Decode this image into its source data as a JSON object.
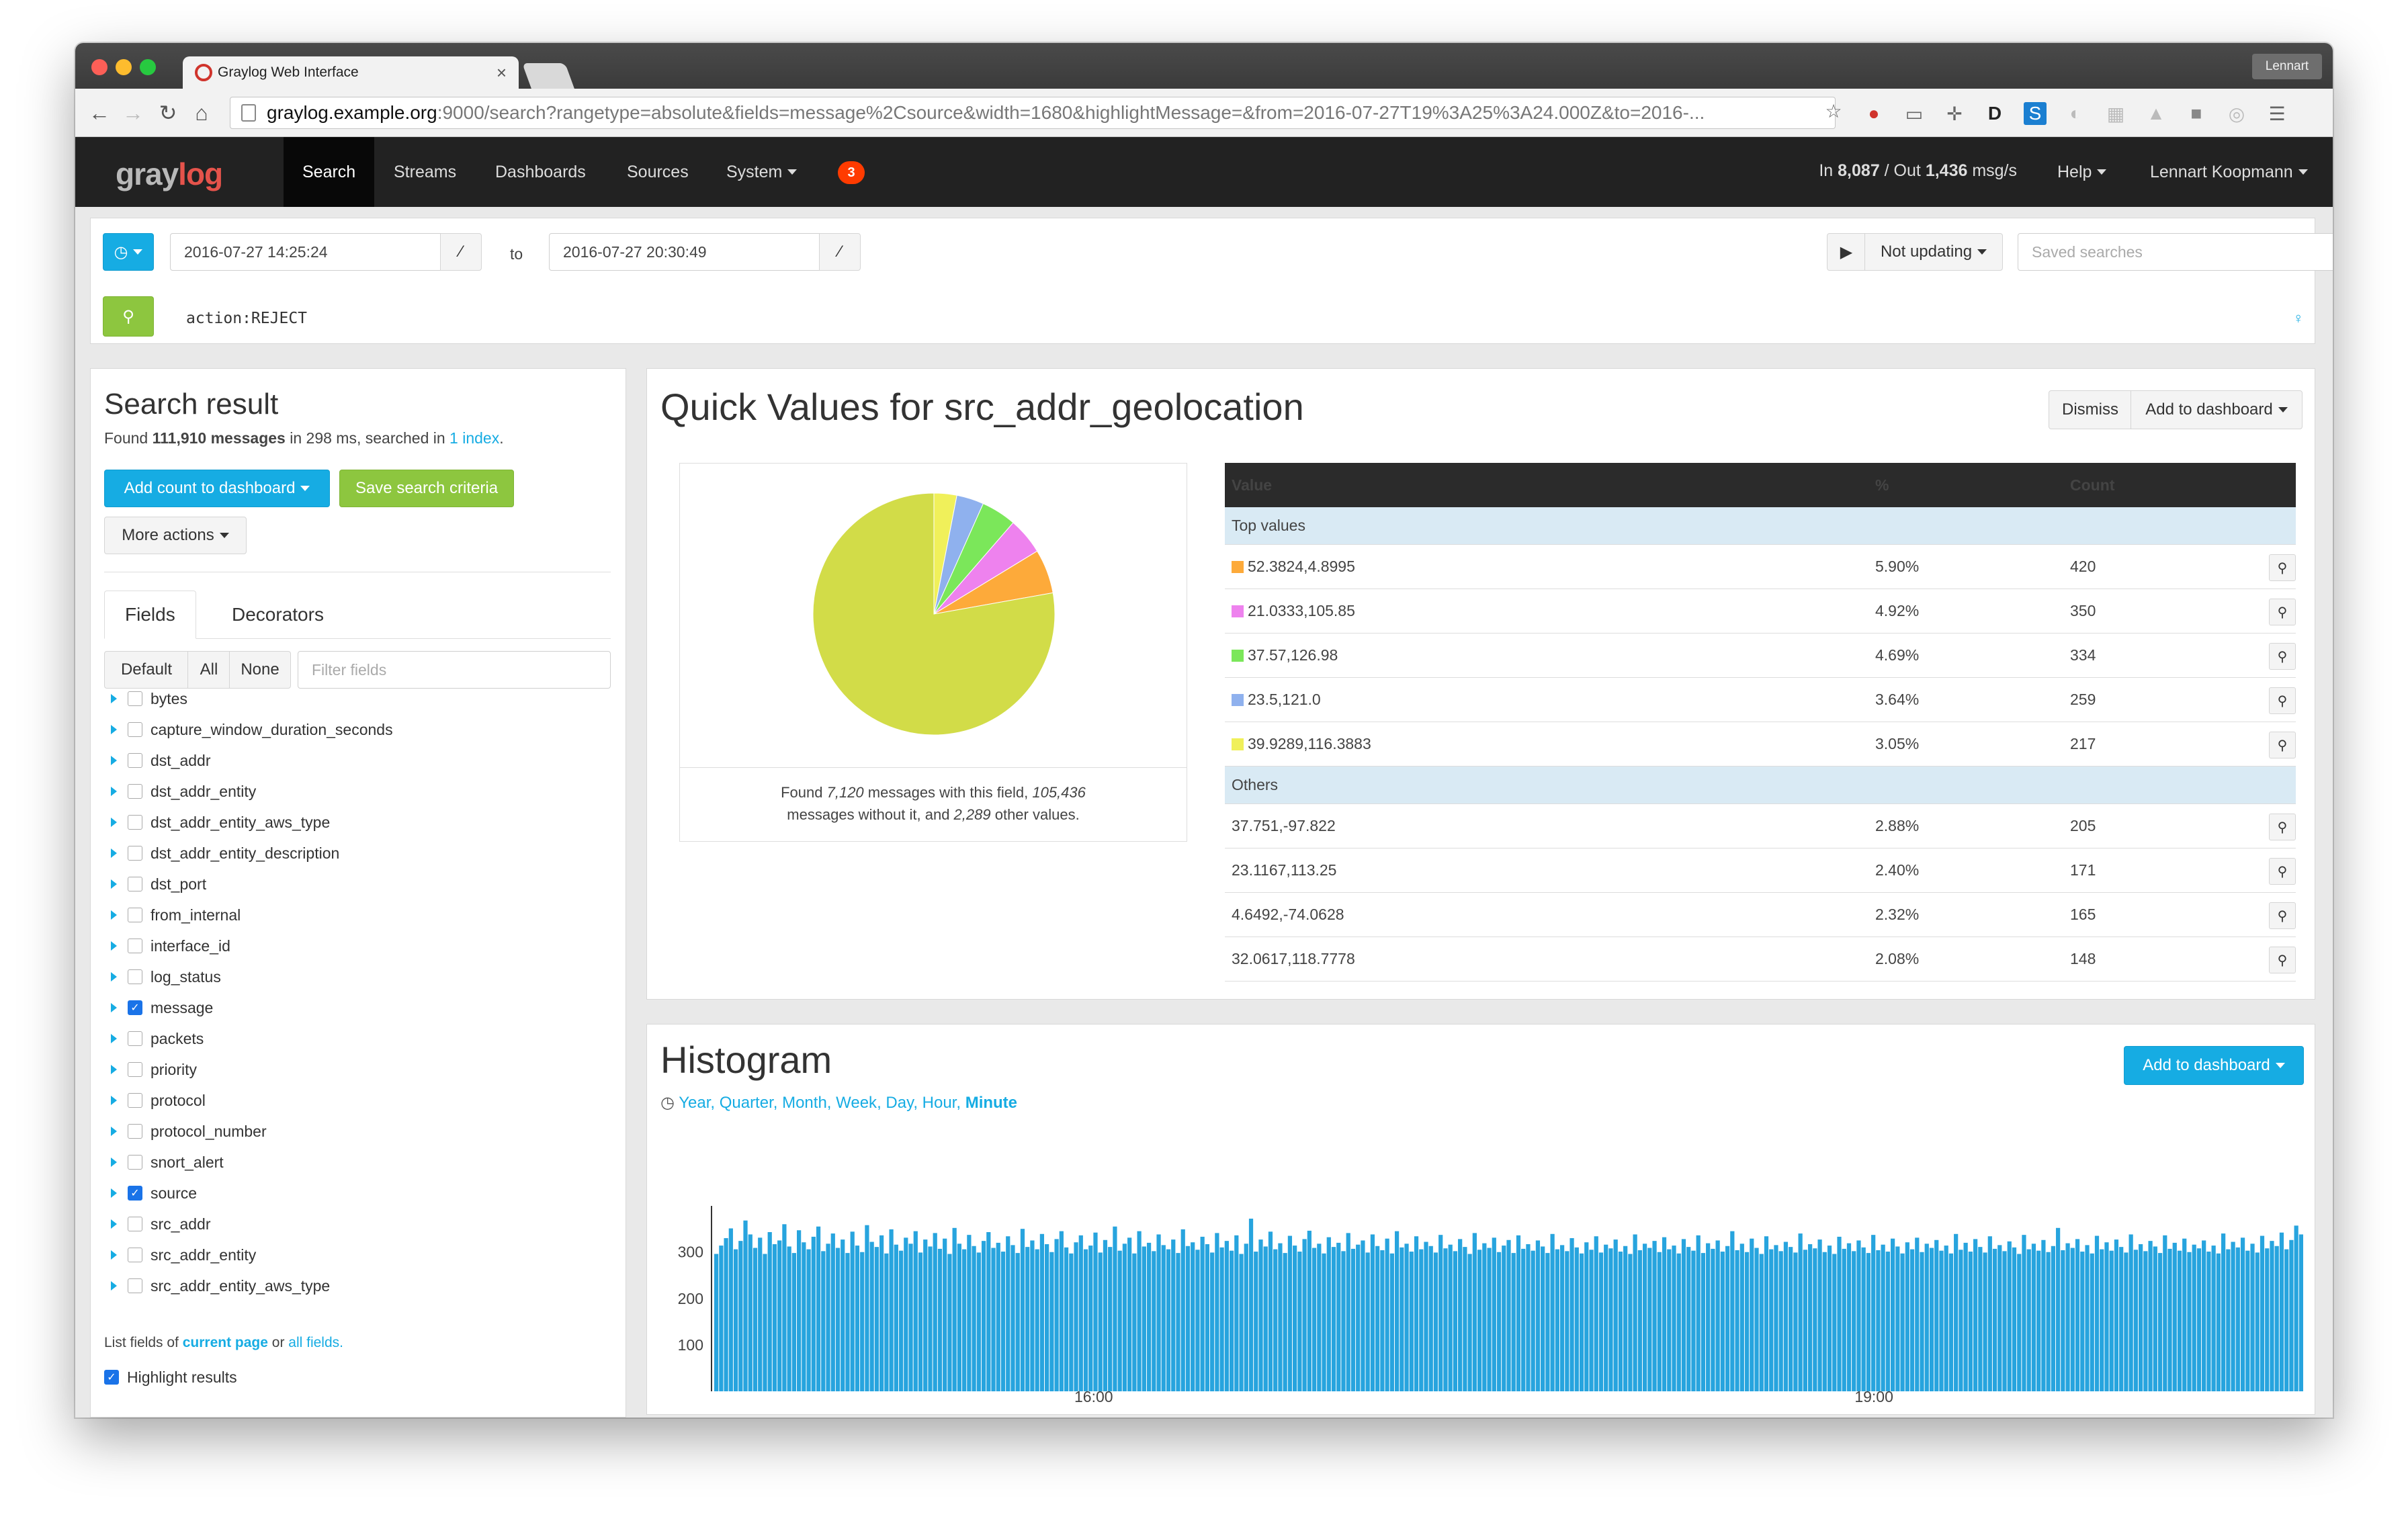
{
  "browser": {
    "tab_title": "Graylog Web Interface",
    "profile": "Lennart",
    "url_host": "graylog.example.org",
    "url_rest": ":9000/search?rangetype=absolute&fields=message%2Csource&width=1680&highlightMessage=&from=2016-07-27T19%3A25%3A24.000Z&to=2016-..."
  },
  "nav": {
    "logo_a": "gray",
    "logo_b": "log",
    "items": [
      "Search",
      "Streams",
      "Dashboards",
      "Sources",
      "System"
    ],
    "badge": "3",
    "throughput_in": "8,087",
    "throughput_out": "1,436",
    "throughput_prefix": "In ",
    "throughput_mid": " / Out ",
    "throughput_suffix": " msg/s",
    "help": "Help",
    "user": "Lennart Koopmann"
  },
  "search": {
    "from": "2016-07-27 14:25:24",
    "to_label": "to",
    "to": "2016-07-27 20:30:49",
    "not_updating": "Not updating",
    "saved_searches_placeholder": "Saved searches",
    "query": "action:REJECT"
  },
  "result": {
    "title": "Search result",
    "found_prefix": "Found ",
    "count": "111,910 messages",
    "found_mid": " in 298 ms, searched in ",
    "index_link": "1 index",
    "found_end": ".",
    "add_count": "Add count to dashboard",
    "save_criteria": "Save search criteria",
    "more_actions": "More actions",
    "tab_fields": "Fields",
    "tab_decorators": "Decorators",
    "filter_default": "Default",
    "filter_all": "All",
    "filter_none": "None",
    "filter_placeholder": "Filter fields",
    "fields": [
      {
        "name": "bytes",
        "checked": false
      },
      {
        "name": "capture_window_duration_seconds",
        "checked": false
      },
      {
        "name": "dst_addr",
        "checked": false
      },
      {
        "name": "dst_addr_entity",
        "checked": false
      },
      {
        "name": "dst_addr_entity_aws_type",
        "checked": false
      },
      {
        "name": "dst_addr_entity_description",
        "checked": false
      },
      {
        "name": "dst_port",
        "checked": false
      },
      {
        "name": "from_internal",
        "checked": false
      },
      {
        "name": "interface_id",
        "checked": false
      },
      {
        "name": "log_status",
        "checked": false
      },
      {
        "name": "message",
        "checked": true
      },
      {
        "name": "packets",
        "checked": false
      },
      {
        "name": "priority",
        "checked": false
      },
      {
        "name": "protocol",
        "checked": false
      },
      {
        "name": "protocol_number",
        "checked": false
      },
      {
        "name": "snort_alert",
        "checked": false
      },
      {
        "name": "source",
        "checked": true
      },
      {
        "name": "src_addr",
        "checked": false
      },
      {
        "name": "src_addr_entity",
        "checked": false
      },
      {
        "name": "src_addr_entity_aws_type",
        "checked": false
      }
    ],
    "list_prefix": "List fields of ",
    "list_current": "current page",
    "list_or": " or ",
    "list_all": "all fields.",
    "highlight": "Highlight results"
  },
  "quickvalues": {
    "title": "Quick Values for src_addr_geolocation",
    "dismiss": "Dismiss",
    "add_to_dashboard": "Add to dashboard",
    "caption_a": "Found ",
    "caption_n1": "7,120",
    "caption_b": " messages with this field, ",
    "caption_n2": "105,436",
    "caption_c": " messages without it, and ",
    "caption_n3": "2,289",
    "caption_d": " other values.",
    "headers": {
      "value": "Value",
      "pct": "%",
      "count": "Count"
    },
    "top_label": "Top values",
    "others_label": "Others",
    "top": [
      {
        "value": "52.3824,4.8995",
        "pct": "5.90%",
        "count": "420",
        "color": "#fdaa3a"
      },
      {
        "value": "21.0333,105.85",
        "pct": "4.92%",
        "count": "350",
        "color": "#ee82ee"
      },
      {
        "value": "37.57,126.98",
        "pct": "4.69%",
        "count": "334",
        "color": "#7be75a"
      },
      {
        "value": "23.5,121.0",
        "pct": "3.64%",
        "count": "259",
        "color": "#8fb1ee"
      },
      {
        "value": "39.9289,116.3883",
        "pct": "3.05%",
        "count": "217",
        "color": "#f0f05a"
      }
    ],
    "others": [
      {
        "value": "37.751,-97.822",
        "pct": "2.88%",
        "count": "205"
      },
      {
        "value": "23.1167,113.25",
        "pct": "2.40%",
        "count": "171"
      },
      {
        "value": "4.6492,-74.0628",
        "pct": "2.32%",
        "count": "165"
      },
      {
        "value": "32.0617,118.7778",
        "pct": "2.08%",
        "count": "148"
      }
    ]
  },
  "chart_data": [
    {
      "type": "pie",
      "labels": [
        "52.3824,4.8995",
        "21.0333,105.85",
        "37.57,126.98",
        "23.5,121.0",
        "39.9289,116.3883",
        "Others"
      ],
      "values": [
        420,
        350,
        334,
        259,
        217,
        5540
      ],
      "colors": [
        "#fdaa3a",
        "#ee82ee",
        "#7be75a",
        "#8fb1ee",
        "#f0f05a",
        "#d2dc48"
      ]
    },
    {
      "type": "bar",
      "title": "Histogram",
      "color": "#27a4de",
      "xticks": [
        "16:00",
        "19:00"
      ],
      "yticks": [
        100,
        200,
        300
      ],
      "ylim": [
        0,
        380
      ],
      "values": [
        296,
        314,
        330,
        351,
        306,
        324,
        368,
        338,
        309,
        331,
        296,
        343,
        317,
        325,
        360,
        312,
        298,
        347,
        321,
        306,
        333,
        355,
        302,
        318,
        340,
        309,
        327,
        298,
        344,
        314,
        300,
        358,
        322,
        311,
        336,
        297,
        349,
        316,
        303,
        331,
        318,
        345,
        299,
        327,
        312,
        341,
        307,
        329,
        296,
        352,
        318,
        306,
        337,
        313,
        299,
        324,
        343,
        309,
        320,
        301,
        334,
        315,
        298,
        350,
        311,
        325,
        306,
        339,
        317,
        300,
        328,
        345,
        310,
        297,
        321,
        336,
        306,
        314,
        342,
        299,
        326,
        311,
        355,
        303,
        318,
        331,
        297,
        345,
        312,
        320,
        302,
        338,
        315,
        306,
        327,
        298,
        349,
        313,
        321,
        305,
        333,
        317,
        299,
        341,
        310,
        324,
        303,
        336,
        296,
        318,
        372,
        301,
        327,
        312,
        344,
        306,
        319,
        298,
        335,
        314,
        301,
        328,
        346,
        309,
        318,
        297,
        332,
        311,
        320,
        302,
        341,
        307,
        316,
        325,
        299,
        338,
        313,
        304,
        329,
        297,
        345,
        310,
        318,
        301,
        334,
        306,
        322,
        313,
        299,
        337,
        308,
        316,
        302,
        328,
        311,
        296,
        341,
        305,
        319,
        309,
        331,
        300,
        314,
        326,
        298,
        336,
        307,
        317,
        303,
        325,
        312,
        298,
        339,
        306,
        315,
        302,
        330,
        310,
        297,
        321,
        305,
        334,
        299,
        316,
        308,
        327,
        301,
        313,
        296,
        338,
        304,
        318,
        309,
        324,
        300,
        332,
        306,
        314,
        297,
        328,
        311,
        303,
        336,
        298,
        319,
        307,
        325,
        301,
        313,
        345,
        304,
        318,
        300,
        329,
        309,
        296,
        334,
        306,
        315,
        302,
        322,
        311,
        299,
        340,
        305,
        317,
        308,
        327,
        300,
        314,
        296,
        333,
        307,
        319,
        302,
        325,
        310,
        298,
        337,
        304,
        316,
        301,
        329,
        312,
        297,
        321,
        306,
        331,
        300,
        318,
        309,
        326,
        303,
        314,
        297,
        339,
        305,
        320,
        301,
        328,
        311,
        299,
        334,
        307,
        315,
        302,
        323,
        310,
        296,
        337,
        306,
        318,
        303,
        326,
        300,
        313,
        352,
        304,
        319,
        309,
        328,
        301,
        315,
        297,
        335,
        306,
        321,
        303,
        327,
        311,
        299,
        338,
        305,
        317,
        302,
        324,
        312,
        298,
        336,
        307,
        320,
        303,
        329,
        300,
        316,
        308,
        325,
        301,
        314,
        297,
        340,
        306,
        322,
        310,
        331,
        303,
        318,
        299,
        335,
        308,
        324,
        313,
        342,
        306,
        326,
        357,
        338
      ]
    }
  ],
  "histogram": {
    "title": "Histogram",
    "add_to_dashboard": "Add to dashboard",
    "resolutions": [
      "Year",
      "Quarter",
      "Month",
      "Week",
      "Day",
      "Hour"
    ],
    "active_resolution": "Minute"
  }
}
